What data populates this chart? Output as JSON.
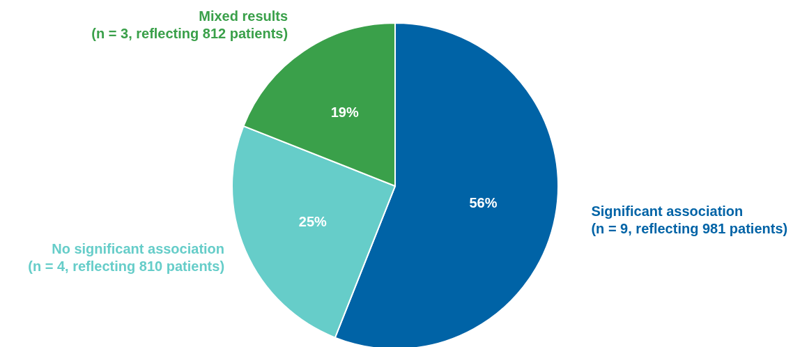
{
  "chart_data": {
    "type": "pie",
    "categories": [
      "Significant association\n(n = 9, reflecting 981 patients)",
      "No significant association\n(n = 4, reflecting 810 patients)",
      "Mixed results\n(n = 3, reflecting 812 patients)"
    ],
    "values": [
      56,
      25,
      19
    ],
    "colors": [
      "#0063a6",
      "#66cdc9",
      "#3aa04a"
    ],
    "value_labels": [
      "56%",
      "25%",
      "19%"
    ],
    "legend": false
  }
}
